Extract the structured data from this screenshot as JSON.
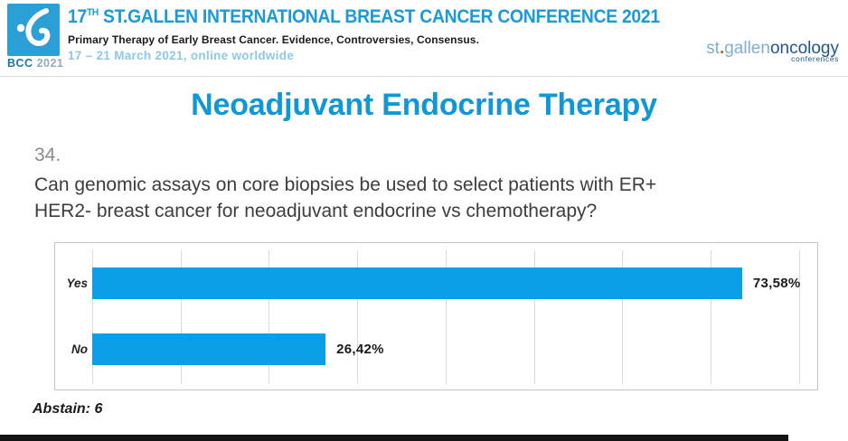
{
  "header": {
    "logo": {
      "bcc": "BCC",
      "year": "2021"
    },
    "title_num": "17",
    "title_sup": "TH",
    "title_rest": " ST.GALLEN INTERNATIONAL BREAST CANCER CONFERENCE 2021",
    "subtitle": "Primary Therapy of Early Breast Cancer. Evidence, Controversies, Consensus.",
    "dates": "17 – 21 March 2021, online worldwide",
    "right_logo": {
      "st": "st",
      "dot": ".",
      "gallen": "gallen",
      "oncology": "oncology",
      "conferences": "conferences"
    }
  },
  "slide": {
    "title": "Neoadjuvant Endocrine Therapy",
    "question_number": "34.",
    "question_line1": "Can genomic assays on core biopsies be used to select patients with ER+",
    "question_line2": "HER2- breast cancer for neoadjuvant endocrine vs chemotherapy?",
    "abstain": "Abstain: 6"
  },
  "chart_data": {
    "type": "bar",
    "orientation": "horizontal",
    "title": "",
    "xlabel": "",
    "ylabel": "",
    "categories": [
      "Yes",
      "No"
    ],
    "values": [
      73.58,
      26.42
    ],
    "value_labels": [
      "73,58%",
      "26,42%"
    ],
    "xlim": [
      0,
      100
    ],
    "gridlines_percent": [
      0,
      10,
      20,
      30,
      40,
      50,
      60,
      70,
      80
    ],
    "grid": true,
    "legend": false,
    "bar_color": "#0a9fe6"
  },
  "colors": {
    "header_title_blue": "#1b9ad6",
    "slide_title_blue": "#0f97d7",
    "bar_blue": "#0a9fe6",
    "dates_light_blue": "#8fc8e8",
    "stgallen_light_blue": "#7eb0d3",
    "oncology_dark_blue": "#205788",
    "logo_square_blue": "#2c9fd6",
    "question_gray": "#3d3d3d"
  }
}
